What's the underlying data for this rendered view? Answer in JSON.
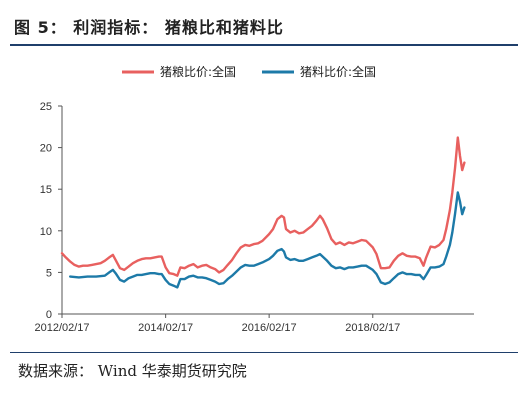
{
  "figure": {
    "title": "图 5： 利润指标： 猪粮比和猪料比",
    "source": "数据来源： Wind  华泰期货研究院"
  },
  "chart_data": {
    "type": "line",
    "title": "",
    "xlabel": "",
    "ylabel": "",
    "ylim": [
      0,
      25
    ],
    "yticks": [
      "0",
      "5",
      "10",
      "15",
      "20",
      "25"
    ],
    "xlim": [
      "2012/02/17",
      "2020/02/01"
    ],
    "xticks": [
      "2012/02/17",
      "2014/02/17",
      "2016/02/17",
      "2018/02/17"
    ],
    "legend_position": "top-center",
    "grid": false,
    "series": [
      {
        "name": "猪粮比价:全国",
        "color": "#e8605f",
        "points": [
          [
            "2012/02/17",
            7.3
          ],
          [
            "2012/03/15",
            6.8
          ],
          [
            "2012/04/15",
            6.3
          ],
          [
            "2012/05/15",
            5.9
          ],
          [
            "2012/06/15",
            5.7
          ],
          [
            "2012/07/15",
            5.8
          ],
          [
            "2012/08/15",
            5.8
          ],
          [
            "2012/09/15",
            5.9
          ],
          [
            "2012/10/15",
            6.0
          ],
          [
            "2012/11/15",
            6.1
          ],
          [
            "2012/12/15",
            6.4
          ],
          [
            "2013/01/15",
            6.8
          ],
          [
            "2013/02/10",
            7.1
          ],
          [
            "2013/03/01",
            6.5
          ],
          [
            "2013/04/01",
            5.5
          ],
          [
            "2013/05/01",
            5.3
          ],
          [
            "2013/06/01",
            5.7
          ],
          [
            "2013/07/01",
            6.1
          ],
          [
            "2013/08/01",
            6.4
          ],
          [
            "2013/09/01",
            6.6
          ],
          [
            "2013/10/01",
            6.7
          ],
          [
            "2013/11/01",
            6.7
          ],
          [
            "2013/12/01",
            6.8
          ],
          [
            "2014/01/01",
            6.9
          ],
          [
            "2014/01/20",
            6.9
          ],
          [
            "2014/02/17",
            5.6
          ],
          [
            "2014/03/15",
            4.9
          ],
          [
            "2014/04/15",
            4.8
          ],
          [
            "2014/05/10",
            4.6
          ],
          [
            "2014/06/01",
            5.6
          ],
          [
            "2014/07/01",
            5.5
          ],
          [
            "2014/08/01",
            5.8
          ],
          [
            "2014/09/01",
            6.0
          ],
          [
            "2014/10/01",
            5.6
          ],
          [
            "2014/11/01",
            5.8
          ],
          [
            "2014/12/01",
            5.9
          ],
          [
            "2015/01/01",
            5.6
          ],
          [
            "2015/02/01",
            5.4
          ],
          [
            "2015/03/01",
            5.0
          ],
          [
            "2015/04/01",
            5.3
          ],
          [
            "2015/05/01",
            5.9
          ],
          [
            "2015/06/01",
            6.5
          ],
          [
            "2015/07/01",
            7.3
          ],
          [
            "2015/08/01",
            8.0
          ],
          [
            "2015/09/01",
            8.3
          ],
          [
            "2015/10/01",
            8.2
          ],
          [
            "2015/11/01",
            8.4
          ],
          [
            "2015/12/01",
            8.5
          ],
          [
            "2016/01/01",
            8.8
          ],
          [
            "2016/02/17",
            9.6
          ],
          [
            "2016/03/15",
            10.2
          ],
          [
            "2016/04/15",
            11.4
          ],
          [
            "2016/05/15",
            11.8
          ],
          [
            "2016/06/01",
            11.6
          ],
          [
            "2016/06/15",
            10.2
          ],
          [
            "2016/07/15",
            9.8
          ],
          [
            "2016/08/15",
            10.0
          ],
          [
            "2016/09/15",
            9.7
          ],
          [
            "2016/10/15",
            9.8
          ],
          [
            "2016/11/15",
            10.2
          ],
          [
            "2016/12/15",
            10.6
          ],
          [
            "2017/01/15",
            11.2
          ],
          [
            "2017/02/10",
            11.8
          ],
          [
            "2017/03/01",
            11.4
          ],
          [
            "2017/04/01",
            10.3
          ],
          [
            "2017/05/01",
            9.0
          ],
          [
            "2017/06/01",
            8.4
          ],
          [
            "2017/07/01",
            8.6
          ],
          [
            "2017/08/01",
            8.3
          ],
          [
            "2017/09/01",
            8.6
          ],
          [
            "2017/10/01",
            8.5
          ],
          [
            "2017/11/01",
            8.7
          ],
          [
            "2017/12/01",
            8.9
          ],
          [
            "2018/01/01",
            8.8
          ],
          [
            "2018/02/17",
            8.0
          ],
          [
            "2018/03/15",
            7.2
          ],
          [
            "2018/04/15",
            5.5
          ],
          [
            "2018/05/15",
            5.5
          ],
          [
            "2018/06/15",
            5.6
          ],
          [
            "2018/07/15",
            6.4
          ],
          [
            "2018/08/15",
            7.0
          ],
          [
            "2018/09/15",
            7.3
          ],
          [
            "2018/10/15",
            7.0
          ],
          [
            "2018/11/15",
            6.9
          ],
          [
            "2018/12/15",
            6.9
          ],
          [
            "2019/01/15",
            6.7
          ],
          [
            "2019/02/10",
            5.8
          ],
          [
            "2019/03/01",
            6.8
          ],
          [
            "2019/04/01",
            8.1
          ],
          [
            "2019/05/01",
            8.0
          ],
          [
            "2019/06/01",
            8.3
          ],
          [
            "2019/07/01",
            8.9
          ],
          [
            "2019/07/20",
            10.2
          ],
          [
            "2019/08/15",
            12.5
          ],
          [
            "2019/09/01",
            14.6
          ],
          [
            "2019/09/20",
            17.5
          ],
          [
            "2019/10/10",
            21.2
          ],
          [
            "2019/10/25",
            19.0
          ],
          [
            "2019/11/10",
            17.3
          ],
          [
            "2019/11/25",
            18.2
          ]
        ]
      },
      {
        "name": "猪料比价:全国",
        "color": "#1d7aa8",
        "points": [
          [
            "2012/04/15",
            4.5
          ],
          [
            "2012/06/15",
            4.4
          ],
          [
            "2012/08/15",
            4.5
          ],
          [
            "2012/10/15",
            4.5
          ],
          [
            "2012/12/15",
            4.6
          ],
          [
            "2013/01/15",
            5.0
          ],
          [
            "2013/02/10",
            5.3
          ],
          [
            "2013/03/01",
            4.9
          ],
          [
            "2013/04/01",
            4.1
          ],
          [
            "2013/05/01",
            3.9
          ],
          [
            "2013/06/01",
            4.3
          ],
          [
            "2013/07/01",
            4.5
          ],
          [
            "2013/08/01",
            4.7
          ],
          [
            "2013/09/01",
            4.7
          ],
          [
            "2013/10/01",
            4.8
          ],
          [
            "2013/11/01",
            4.9
          ],
          [
            "2013/12/01",
            4.9
          ],
          [
            "2014/01/01",
            4.8
          ],
          [
            "2014/01/20",
            4.8
          ],
          [
            "2014/02/17",
            4.1
          ],
          [
            "2014/03/15",
            3.6
          ],
          [
            "2014/04/15",
            3.4
          ],
          [
            "2014/05/10",
            3.2
          ],
          [
            "2014/06/01",
            4.2
          ],
          [
            "2014/07/01",
            4.2
          ],
          [
            "2014/08/01",
            4.5
          ],
          [
            "2014/09/01",
            4.6
          ],
          [
            "2014/10/01",
            4.4
          ],
          [
            "2014/11/01",
            4.4
          ],
          [
            "2014/12/01",
            4.3
          ],
          [
            "2015/01/01",
            4.1
          ],
          [
            "2015/02/01",
            3.9
          ],
          [
            "2015/03/01",
            3.6
          ],
          [
            "2015/04/01",
            3.7
          ],
          [
            "2015/05/01",
            4.2
          ],
          [
            "2015/06/01",
            4.6
          ],
          [
            "2015/07/01",
            5.1
          ],
          [
            "2015/08/01",
            5.6
          ],
          [
            "2015/09/01",
            5.9
          ],
          [
            "2015/10/01",
            5.8
          ],
          [
            "2015/11/01",
            5.8
          ],
          [
            "2015/12/01",
            6.0
          ],
          [
            "2016/01/01",
            6.2
          ],
          [
            "2016/02/17",
            6.6
          ],
          [
            "2016/03/15",
            7.0
          ],
          [
            "2016/04/15",
            7.6
          ],
          [
            "2016/05/15",
            7.8
          ],
          [
            "2016/06/01",
            7.5
          ],
          [
            "2016/06/15",
            6.8
          ],
          [
            "2016/07/15",
            6.5
          ],
          [
            "2016/08/15",
            6.6
          ],
          [
            "2016/09/15",
            6.4
          ],
          [
            "2016/10/15",
            6.4
          ],
          [
            "2016/11/15",
            6.6
          ],
          [
            "2016/12/15",
            6.8
          ],
          [
            "2017/01/15",
            7.0
          ],
          [
            "2017/02/10",
            7.2
          ],
          [
            "2017/03/01",
            6.9
          ],
          [
            "2017/04/01",
            6.4
          ],
          [
            "2017/05/01",
            5.8
          ],
          [
            "2017/06/01",
            5.5
          ],
          [
            "2017/07/01",
            5.6
          ],
          [
            "2017/08/01",
            5.4
          ],
          [
            "2017/09/01",
            5.6
          ],
          [
            "2017/10/01",
            5.6
          ],
          [
            "2017/11/01",
            5.7
          ],
          [
            "2017/12/01",
            5.8
          ],
          [
            "2018/01/01",
            5.8
          ],
          [
            "2018/02/17",
            5.3
          ],
          [
            "2018/03/15",
            4.8
          ],
          [
            "2018/04/15",
            3.8
          ],
          [
            "2018/05/15",
            3.6
          ],
          [
            "2018/06/15",
            3.8
          ],
          [
            "2018/07/15",
            4.3
          ],
          [
            "2018/08/15",
            4.8
          ],
          [
            "2018/09/15",
            5.0
          ],
          [
            "2018/10/15",
            4.8
          ],
          [
            "2018/11/15",
            4.8
          ],
          [
            "2018/12/15",
            4.7
          ],
          [
            "2019/01/15",
            4.7
          ],
          [
            "2019/02/10",
            4.2
          ],
          [
            "2019/03/01",
            4.7
          ],
          [
            "2019/04/01",
            5.6
          ],
          [
            "2019/05/01",
            5.6
          ],
          [
            "2019/06/01",
            5.7
          ],
          [
            "2019/07/01",
            6.0
          ],
          [
            "2019/07/20",
            6.9
          ],
          [
            "2019/08/15",
            8.3
          ],
          [
            "2019/09/01",
            9.8
          ],
          [
            "2019/09/20",
            12.0
          ],
          [
            "2019/10/10",
            14.6
          ],
          [
            "2019/10/25",
            13.5
          ],
          [
            "2019/11/10",
            12.0
          ],
          [
            "2019/11/25",
            12.8
          ]
        ]
      }
    ]
  }
}
